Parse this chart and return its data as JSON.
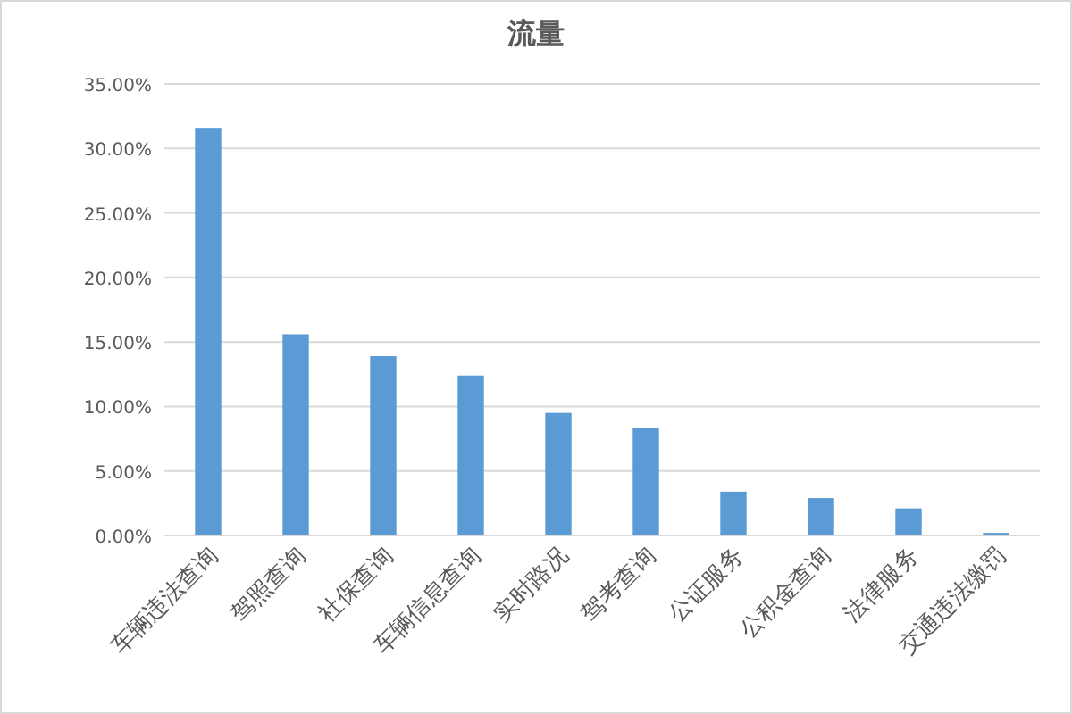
{
  "chart_data": {
    "type": "bar",
    "title": "流量",
    "categories": [
      "车辆违法查询",
      "驾照查询",
      "社保查询",
      "车辆信息查询",
      "实时路况",
      "驾考查询",
      "公证服务",
      "公积金查询",
      "法律服务",
      "交通违法缴罚"
    ],
    "values": [
      31.6,
      15.6,
      13.9,
      12.4,
      9.5,
      8.3,
      3.4,
      2.9,
      2.1,
      0.2
    ],
    "color": "#5b9bd5",
    "ylim": [
      0,
      35
    ],
    "yticks": [
      {
        "value": 0,
        "label": "0.00%"
      },
      {
        "value": 5,
        "label": "5.00%"
      },
      {
        "value": 10,
        "label": "10.00%"
      },
      {
        "value": 15,
        "label": "15.00%"
      },
      {
        "value": 20,
        "label": "20.00%"
      },
      {
        "value": 25,
        "label": "25.00%"
      },
      {
        "value": 30,
        "label": "30.00%"
      },
      {
        "value": 35,
        "label": "35.00%"
      }
    ],
    "grid": "y"
  }
}
